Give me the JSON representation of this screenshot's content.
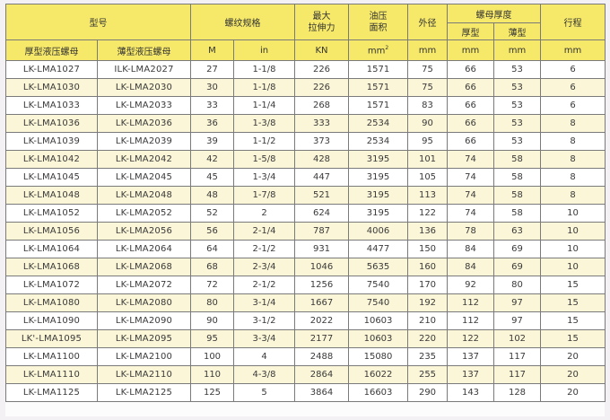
{
  "headers": {
    "model": "型号",
    "thread_spec": "螺纹规格",
    "max_tension": "最大\n拉伸力",
    "oil_area": "油压\n面积",
    "outer_diameter": "外径",
    "nut_thickness": "螺母厚度",
    "thick": "厚型",
    "thin": "薄型",
    "stroke": "行程",
    "thick_nut": "厚型液压螺母",
    "thin_nut": "薄型液压螺母"
  },
  "units": {
    "m": "M",
    "in": "in",
    "kn": "KN",
    "mm2_base": "mm",
    "mm2_exp": "2",
    "od": "mm",
    "thick_mm": "mm",
    "thin_mm": "mm",
    "stroke_mm": "mm"
  },
  "rows": [
    [
      "LK-LMA1027",
      "ILK-LMA2027",
      "27",
      "1-1/8",
      "226",
      "1571",
      "75",
      "66",
      "53",
      "6"
    ],
    [
      "LK-LMA1030",
      "LK-LMA2030",
      "30",
      "1-1/8",
      "226",
      "1571",
      "75",
      "66",
      "53",
      "6"
    ],
    [
      "LK-LMA1033",
      "LK-LMA2033",
      "33",
      "1-1/4",
      "268",
      "1571",
      "83",
      "66",
      "53",
      "6"
    ],
    [
      "LK-LMA1036",
      "LK-LMA2036",
      "36",
      "1-3/8",
      "333",
      "2534",
      "90",
      "66",
      "53",
      "8"
    ],
    [
      "LK-LMA1039",
      "LK-LMA2039",
      "39",
      "1-1/2",
      "373",
      "2534",
      "95",
      "66",
      "53",
      "8"
    ],
    [
      "LK-LMA1042",
      "LK-LMA2042",
      "42",
      "1-5/8",
      "428",
      "3195",
      "101",
      "74",
      "58",
      "8"
    ],
    [
      "LK-LMA1045",
      "LK-LMA2045",
      "45",
      "1-3/4",
      "447",
      "3195",
      "105",
      "74",
      "58",
      "8"
    ],
    [
      "LK-LMA1048",
      "LK-LMA2048",
      "48",
      "1-7/8",
      "521",
      "3195",
      "113",
      "74",
      "58",
      "8"
    ],
    [
      "LK-LMA1052",
      "LK-LMA2052",
      "52",
      "2",
      "624",
      "3195",
      "122",
      "74",
      "58",
      "10"
    ],
    [
      "LK-LMA1056",
      "LK-LMA2056",
      "56",
      "2-1/4",
      "787",
      "4006",
      "136",
      "78",
      "63",
      "10"
    ],
    [
      "LK-LMA1064",
      "LK-LMA2064",
      "64",
      "2-1/2",
      "931",
      "4477",
      "150",
      "84",
      "69",
      "10"
    ],
    [
      "LK-LMA1068",
      "LK-LMA2068",
      "68",
      "2-3/4",
      "1046",
      "5635",
      "160",
      "84",
      "69",
      "10"
    ],
    [
      "LK-LMA1072",
      "LK-LMA2072",
      "72",
      "2-1/2",
      "1256",
      "7540",
      "170",
      "92",
      "80",
      "15"
    ],
    [
      "LK-LMA1080",
      "LK-LMA2080",
      "80",
      "3-1/4",
      "1667",
      "7540",
      "192",
      "112",
      "97",
      "15"
    ],
    [
      "LK-LMA1090",
      "LK-LMA2090",
      "90",
      "3-1/2",
      "2022",
      "10603",
      "210",
      "112",
      "97",
      "15"
    ],
    [
      "LK'-LMA1095",
      "LK-LMA2095",
      "95",
      "3-3/4",
      "2177",
      "10603",
      "220",
      "122",
      "102",
      "15"
    ],
    [
      "LK-LMA1100",
      "LK-LMA2100",
      "100",
      "4",
      "2488",
      "15080",
      "235",
      "137",
      "117",
      "20"
    ],
    [
      "LK-LMA1110",
      "LK-LMA2110",
      "110",
      "4-3/8",
      "2864",
      "16022",
      "255",
      "137",
      "117",
      "20"
    ],
    [
      "LK-LMA1125",
      "LK-LMA2125",
      "125",
      "5",
      "3864",
      "16603",
      "290",
      "143",
      "128",
      "20"
    ]
  ]
}
